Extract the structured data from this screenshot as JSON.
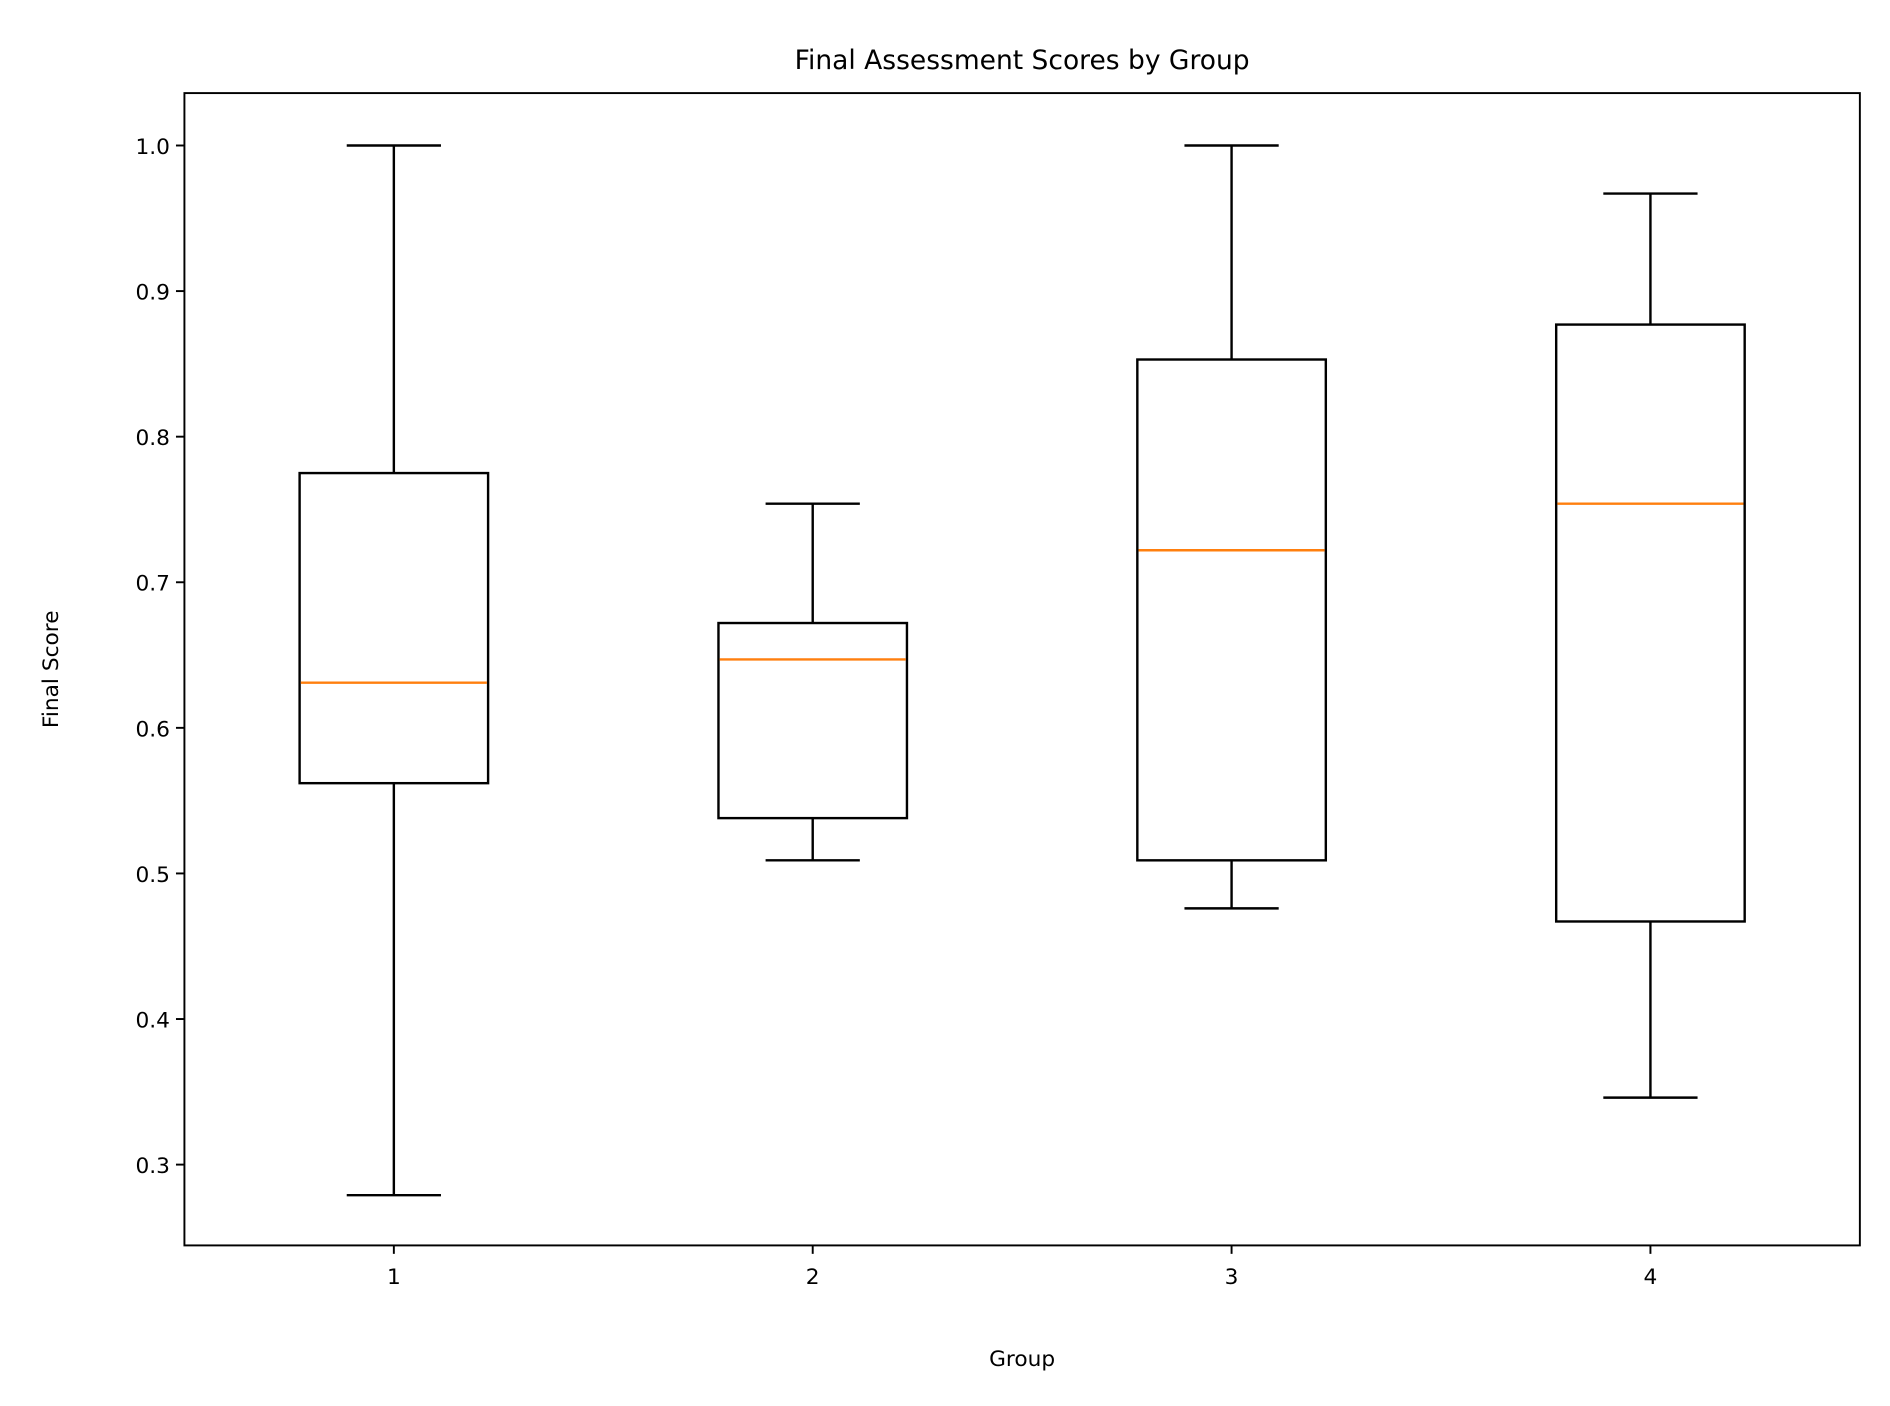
{
  "chart_data": {
    "type": "box",
    "title": "Final Assessment Scores by Group",
    "xlabel": "Group",
    "ylabel": "Final Score",
    "categories": [
      "1",
      "2",
      "3",
      "4"
    ],
    "yticks": [
      "0.3",
      "0.4",
      "0.5",
      "0.6",
      "0.7",
      "0.8",
      "0.9",
      "1.0"
    ],
    "ylim": [
      0.2445,
      1.036
    ],
    "xlim": [
      0.5,
      4.5
    ],
    "grid": false,
    "boxes": [
      {
        "group": "1",
        "whisker_low": 0.279,
        "q1": 0.562,
        "median": 0.631,
        "q3": 0.775,
        "whisker_high": 1.0
      },
      {
        "group": "2",
        "whisker_low": 0.509,
        "q1": 0.538,
        "median": 0.647,
        "q3": 0.672,
        "whisker_high": 0.754
      },
      {
        "group": "3",
        "whisker_low": 0.476,
        "q1": 0.509,
        "median": 0.722,
        "q3": 0.853,
        "whisker_high": 1.0
      },
      {
        "group": "4",
        "whisker_low": 0.346,
        "q1": 0.467,
        "median": 0.754,
        "q3": 0.877,
        "whisker_high": 0.967
      }
    ],
    "colors": {
      "box": "#000000",
      "median": "#ff7f0e"
    }
  }
}
